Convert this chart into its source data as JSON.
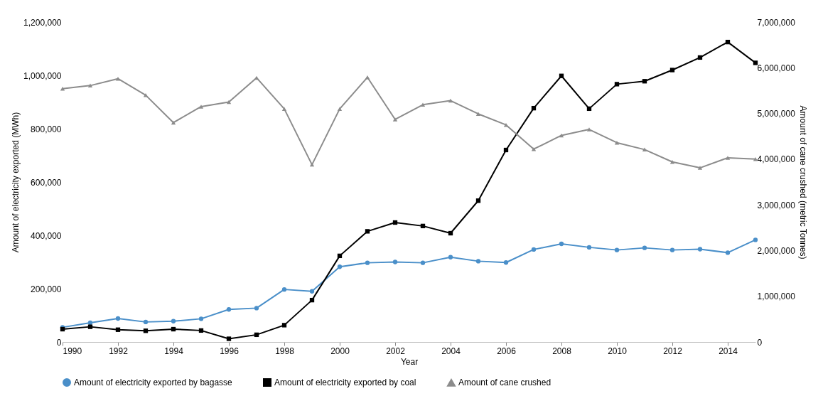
{
  "chart_data": {
    "type": "line",
    "xlabel": "Year",
    "ylabel": "Amount of  electricity exported (MWh)",
    "y2label": "Amount of cane crushed (metric Tonnes)",
    "x": [
      1990,
      1991,
      1992,
      1993,
      1994,
      1995,
      1996,
      1997,
      1998,
      1999,
      2000,
      2001,
      2002,
      2003,
      2004,
      2005,
      2006,
      2007,
      2008,
      2009,
      2010,
      2011,
      2012,
      2013,
      2014,
      2015
    ],
    "series": [
      {
        "name": "Amount of electricity exported by bagasse",
        "color": "#4a8fc9",
        "marker": "circle",
        "values": [
          55000,
          72000,
          88000,
          75000,
          78000,
          87000,
          122000,
          127000,
          197000,
          190000,
          282000,
          297000,
          300000,
          297000,
          318000,
          303000,
          298000,
          347000,
          368000,
          355000,
          345000,
          353000,
          345000,
          348000,
          335000,
          383000
        ]
      },
      {
        "name": "Amount of electricity exported by coal",
        "color": "#000000",
        "marker": "square",
        "values": [
          48000,
          57000,
          46000,
          42000,
          48000,
          43000,
          12000,
          27000,
          63000,
          157000,
          323000,
          415000,
          448000,
          435000,
          408000,
          530000,
          720000,
          877000,
          998000,
          875000,
          967000,
          978000,
          1020000,
          1067000,
          1125000,
          1047000
        ]
      },
      {
        "name": "Amount of cane crushed",
        "color": "#8c8c8c",
        "marker": "triangle",
        "axis": "y2",
        "values": [
          5540000,
          5610000,
          5760000,
          5400000,
          4800000,
          5150000,
          5250000,
          5780000,
          5100000,
          3880000,
          5100000,
          5790000,
          4870000,
          5190000,
          5280000,
          4990000,
          4750000,
          4220000,
          4520000,
          4650000,
          4360000,
          4210000,
          3940000,
          3810000,
          4030000,
          4000000
        ]
      }
    ],
    "xlim": [
      1990,
      2015
    ],
    "xticks": [
      1990,
      1992,
      1994,
      1996,
      1998,
      2000,
      2002,
      2004,
      2006,
      2008,
      2010,
      2012,
      2014
    ],
    "ylim": [
      0,
      1200000
    ],
    "yticks": [
      0,
      {
        "value": 200000,
        "label": "200,000"
      },
      {
        "value": 400000,
        "label": "400,000"
      },
      {
        "value": 600000,
        "label": "600,000"
      },
      {
        "value": 800000,
        "label": "800,000"
      },
      {
        "value": 1000000,
        "label": "1,000,000"
      },
      {
        "value": 1200000,
        "label": "1,200,000"
      }
    ],
    "y2lim": [
      0,
      7000000
    ],
    "y2ticks": [
      0,
      {
        "value": 1000000,
        "label": "1,000,000"
      },
      {
        "value": 2000000,
        "label": "2,000,000"
      },
      {
        "value": 3000000,
        "label": "3,000,000"
      },
      {
        "value": 4000000,
        "label": "4,000,000"
      },
      {
        "value": 5000000,
        "label": "5,000,000"
      },
      {
        "value": 6000000,
        "label": "6,000,000"
      },
      {
        "value": 7000000,
        "label": "7,000,000"
      }
    ],
    "grid": false,
    "legend": "bottom",
    "line_style": "solid"
  }
}
